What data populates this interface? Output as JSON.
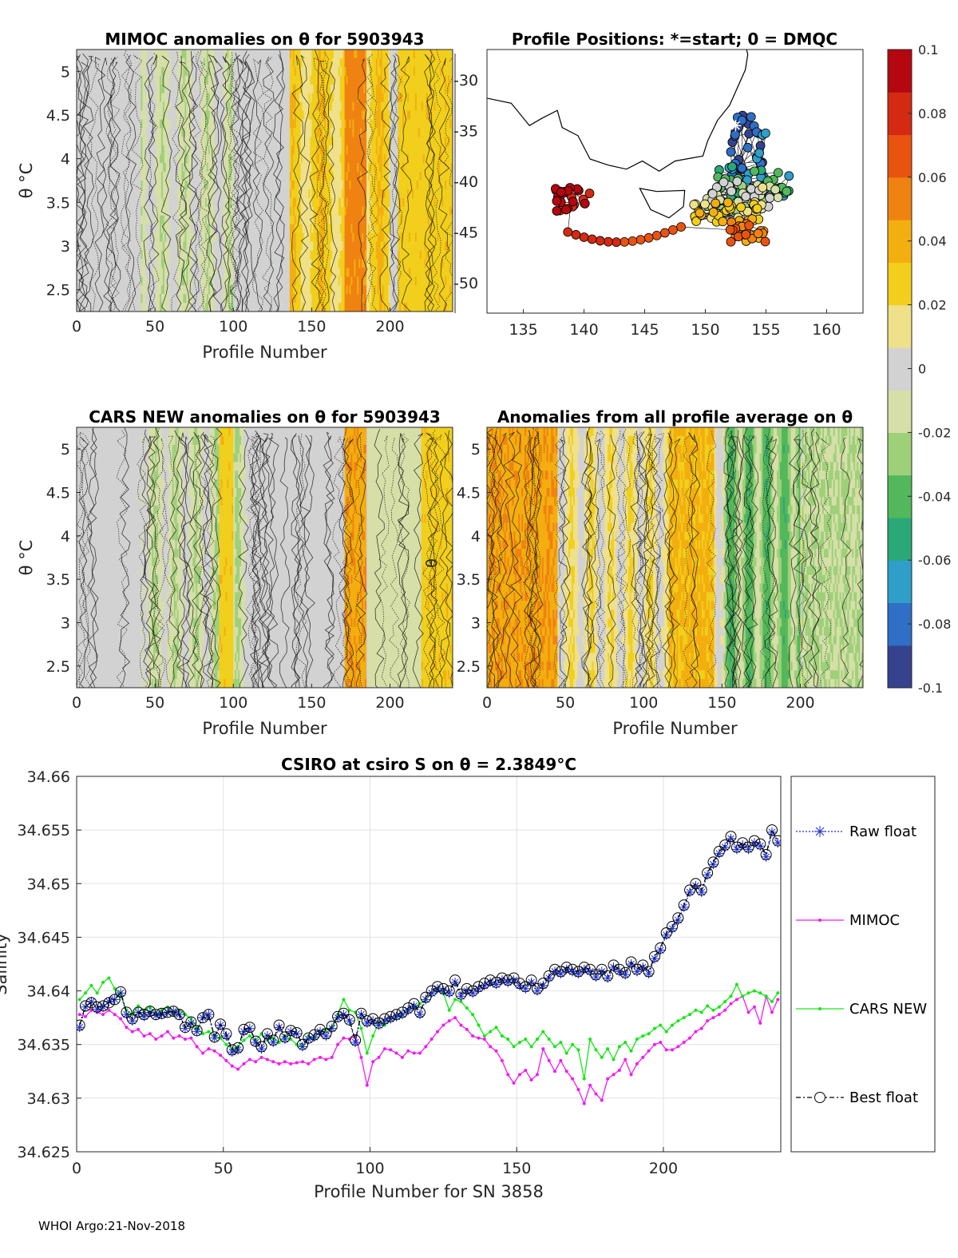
{
  "footer": "WHOI Argo:21-Nov-2018",
  "chart_data": [
    {
      "id": "mimoc",
      "type": "heatmap",
      "title": "MIMOC anomalies on θ  for 5903943",
      "xlabel": "Profile Number",
      "ylabel": "θ °C",
      "xlim": [
        0,
        240
      ],
      "ylim": [
        2.25,
        5.25
      ],
      "xticks": [
        "0",
        "50",
        "100",
        "150",
        "200"
      ],
      "yticks": [
        "2.5",
        "3",
        "3.5",
        "4",
        "4.5",
        "5"
      ]
    },
    {
      "id": "positions",
      "type": "scatter",
      "title": "Profile Positions: *=start; 0 = DMQC",
      "xlim": [
        132,
        163
      ],
      "ylim": [
        -53,
        -27
      ],
      "xticks": [
        "135",
        "140",
        "145",
        "150",
        "155",
        "160"
      ],
      "yticks": [
        "-30",
        "-35",
        "-40",
        "-45",
        "-50"
      ],
      "color_by": "profile number",
      "start_marker": [
        152.5,
        -34.5
      ]
    },
    {
      "id": "cars",
      "type": "heatmap",
      "title": "CARS NEW anomalies on θ for 5903943",
      "xlabel": "Profile Number",
      "ylabel": "θ °C",
      "xlim": [
        0,
        240
      ],
      "ylim": [
        2.25,
        5.25
      ],
      "xticks": [
        "0",
        "50",
        "100",
        "150",
        "200"
      ],
      "yticks": [
        "2.5",
        "3",
        "3.5",
        "4",
        "4.5",
        "5"
      ],
      "side_label": "θ"
    },
    {
      "id": "allavg",
      "type": "heatmap",
      "title": "Anomalies from all profile average on θ",
      "xlabel": "Profile Number",
      "xlim": [
        0,
        240
      ],
      "ylim": [
        2.25,
        5.25
      ],
      "xticks": [
        "0",
        "50",
        "100",
        "150",
        "200"
      ],
      "yticks": [
        "2.5",
        "3",
        "3.5",
        "4",
        "4.5",
        "5"
      ]
    },
    {
      "id": "colorbar",
      "type": "colorbar",
      "range": [
        -0.1,
        0.1
      ],
      "ticks": [
        "0.1",
        "0.08",
        "0.06",
        "0.04",
        "0.02",
        "0",
        "-0.02",
        "-0.04",
        "-0.06",
        "-0.08",
        "-0.1"
      ],
      "colors": [
        "#35438f",
        "#2f6fc6",
        "#2f9ec9",
        "#2aa878",
        "#53b85b",
        "#9ed07a",
        "#d6dfa8",
        "#d2d2d2",
        "#efe08a",
        "#f1cf1c",
        "#f3ae0f",
        "#ef8210",
        "#e8540f",
        "#d42a12",
        "#b5070f"
      ]
    },
    {
      "id": "salinity",
      "type": "line",
      "title": "CSIRO at csiro S on θ = 2.3849°C",
      "xlabel": "Profile Number for SN 3858",
      "ylabel": "Salinity",
      "xlim": [
        0,
        240
      ],
      "ylim": [
        34.625,
        34.66
      ],
      "xticks": [
        "0",
        "50",
        "100",
        "150",
        "200"
      ],
      "yticks": [
        "34.625",
        "34.63",
        "34.635",
        "34.64",
        "34.645",
        "34.65",
        "34.655",
        "34.66"
      ],
      "x": [
        1,
        3,
        5,
        7,
        9,
        11,
        13,
        15,
        17,
        19,
        21,
        23,
        25,
        27,
        29,
        31,
        33,
        35,
        37,
        39,
        41,
        43,
        45,
        47,
        49,
        51,
        53,
        55,
        57,
        59,
        61,
        63,
        65,
        67,
        69,
        71,
        73,
        75,
        77,
        79,
        81,
        83,
        85,
        87,
        89,
        91,
        93,
        95,
        97,
        99,
        101,
        103,
        105,
        107,
        109,
        111,
        113,
        115,
        117,
        119,
        121,
        123,
        125,
        127,
        129,
        131,
        133,
        135,
        137,
        139,
        141,
        143,
        145,
        147,
        149,
        151,
        153,
        155,
        157,
        159,
        161,
        163,
        165,
        167,
        169,
        171,
        173,
        175,
        177,
        179,
        181,
        183,
        185,
        187,
        189,
        191,
        193,
        195,
        197,
        199,
        201,
        203,
        205,
        207,
        209,
        211,
        213,
        215,
        217,
        219,
        221,
        223,
        225,
        227,
        229,
        231,
        233,
        235,
        237,
        239
      ],
      "series": [
        {
          "name": "Raw float",
          "color": "#1a2fd6",
          "values": [
            34.6366,
            34.6385,
            34.639,
            34.6383,
            34.6385,
            34.639,
            34.6392,
            34.6398,
            34.6378,
            34.6372,
            34.638,
            34.6376,
            34.638,
            34.6377,
            34.6378,
            34.638,
            34.6381,
            34.6378,
            34.6365,
            34.637,
            34.6362,
            34.6375,
            34.6378,
            34.6356,
            34.6368,
            34.6358,
            34.6343,
            34.6345,
            34.6362,
            34.6365,
            34.6352,
            34.6346,
            34.6358,
            34.6352,
            34.6366,
            34.6355,
            34.6362,
            34.636,
            34.6348,
            34.6355,
            34.6357,
            34.6362,
            34.6358,
            34.6365,
            34.6375,
            34.6378,
            34.6372,
            34.6352,
            34.6378,
            34.637,
            34.6372,
            34.6368,
            34.6372,
            34.6374,
            34.6376,
            34.6378,
            34.6382,
            34.6386,
            34.6378,
            34.6392,
            34.6398,
            34.6402,
            34.64,
            34.6398,
            34.6408,
            34.6395,
            34.64,
            34.6398,
            34.6402,
            34.6405,
            34.6408,
            34.6406,
            34.641,
            34.6408,
            34.641,
            34.6405,
            34.6402,
            34.6408,
            34.64,
            34.6405,
            34.6412,
            34.6418,
            34.6416,
            34.642,
            34.6418,
            34.6416,
            34.642,
            34.6418,
            34.6413,
            34.6418,
            34.6412,
            34.6422,
            34.6418,
            34.6415,
            34.6425,
            34.6418,
            34.6422,
            34.6416,
            34.643,
            34.6438,
            34.6452,
            34.6458,
            34.6466,
            34.6478,
            34.6492,
            34.6498,
            34.6492,
            34.6508,
            34.6518,
            34.6528,
            34.6534,
            34.6542,
            34.6532,
            34.6536,
            34.6532,
            34.6538,
            34.6535,
            34.6525,
            34.6548,
            34.6538
          ]
        },
        {
          "name": "MIMOC",
          "color": "#f01cf0",
          "values": [
            34.6378,
            34.6376,
            34.6382,
            34.638,
            34.6378,
            34.6382,
            34.6378,
            34.6374,
            34.6366,
            34.6362,
            34.6364,
            34.6358,
            34.636,
            34.6355,
            34.6358,
            34.6362,
            34.6356,
            34.6358,
            34.6355,
            34.6356,
            34.6348,
            34.6342,
            34.6346,
            34.6344,
            34.634,
            34.6335,
            34.633,
            34.6327,
            34.6332,
            34.6336,
            34.6334,
            34.6338,
            34.6336,
            34.6334,
            34.6332,
            34.6334,
            34.6332,
            34.6333,
            34.6334,
            34.6332,
            34.6336,
            34.6338,
            34.6336,
            34.6338,
            34.635,
            34.6356,
            34.6355,
            34.6358,
            34.6338,
            34.6312,
            34.6334,
            34.6338,
            34.6346,
            34.6345,
            34.6342,
            34.6338,
            34.6344,
            34.6342,
            34.6342,
            34.6348,
            34.6355,
            34.6362,
            34.6368,
            34.6372,
            34.6375,
            34.6368,
            34.6364,
            34.6358,
            34.6356,
            34.6355,
            34.6348,
            34.6344,
            34.6335,
            34.6322,
            34.6314,
            34.6322,
            34.6326,
            34.6317,
            34.6322,
            34.6346,
            34.6335,
            34.6325,
            34.6335,
            34.6325,
            34.6318,
            34.6308,
            34.6295,
            34.6312,
            34.6304,
            34.6298,
            34.6318,
            34.6322,
            34.6326,
            34.6336,
            34.6322,
            34.6332,
            34.6338,
            34.6344,
            34.635,
            34.6352,
            34.6345,
            34.6345,
            34.6348,
            34.6352,
            34.6356,
            34.6362,
            34.6365,
            34.6372,
            34.6375,
            34.6378,
            34.6382,
            34.6388,
            34.6392,
            34.6395,
            34.638,
            34.6385,
            34.637,
            34.6395,
            34.638,
            34.6392
          ]
        },
        {
          "name": "CARS NEW",
          "color": "#16e616",
          "values": [
            34.6392,
            34.6398,
            34.6405,
            34.6398,
            34.6408,
            34.6412,
            34.6402,
            34.6396,
            34.6382,
            34.6378,
            34.6386,
            34.6382,
            34.6385,
            34.6378,
            34.6382,
            34.6385,
            34.6378,
            34.6382,
            34.6378,
            34.6374,
            34.6366,
            34.636,
            34.6362,
            34.6358,
            34.6356,
            34.635,
            34.6346,
            34.6348,
            34.6354,
            34.6358,
            34.6354,
            34.636,
            34.6354,
            34.6356,
            34.6352,
            34.6358,
            34.6355,
            34.635,
            34.6348,
            34.6358,
            34.6356,
            34.6362,
            34.6364,
            34.6366,
            34.6378,
            34.6392,
            34.6382,
            34.638,
            34.6365,
            34.6342,
            34.6358,
            34.637,
            34.6368,
            34.6374,
            34.6376,
            34.6378,
            34.6382,
            34.6385,
            34.6388,
            34.6392,
            34.6398,
            34.6402,
            34.6398,
            34.6382,
            34.6392,
            34.639,
            34.6384,
            34.6378,
            34.6368,
            34.6358,
            34.6362,
            34.6366,
            34.6358,
            34.6355,
            34.6348,
            34.6352,
            34.6355,
            34.6348,
            34.6355,
            34.6362,
            34.6355,
            34.6348,
            34.6352,
            34.6342,
            34.635,
            34.6345,
            34.6318,
            34.6355,
            34.6345,
            34.6338,
            34.6346,
            34.6336,
            34.6348,
            34.6352,
            34.6344,
            34.6355,
            34.6358,
            34.636,
            34.6365,
            34.6368,
            34.6362,
            34.6368,
            34.6372,
            34.6375,
            34.6378,
            34.6382,
            34.638,
            34.6386,
            34.6382,
            34.6385,
            34.639,
            34.6395,
            34.6406,
            34.6395,
            34.6398,
            34.64,
            34.6398,
            34.6395,
            34.639,
            34.6398
          ]
        },
        {
          "name": "Best float",
          "color": "#000000",
          "values": [
            34.6368,
            34.6386,
            34.6389,
            34.6385,
            34.6386,
            34.6389,
            34.6392,
            34.6399,
            34.638,
            34.6374,
            34.638,
            34.6378,
            34.6381,
            34.6378,
            34.6379,
            34.638,
            34.6381,
            34.6378,
            34.6366,
            34.6371,
            34.6363,
            34.6375,
            34.6378,
            34.6357,
            34.6369,
            34.636,
            34.6345,
            34.6347,
            34.6364,
            34.6366,
            34.6353,
            34.6348,
            34.636,
            34.6354,
            34.6368,
            34.6357,
            34.6363,
            34.6361,
            34.635,
            34.6356,
            34.6359,
            34.6364,
            34.636,
            34.6367,
            34.6376,
            34.6379,
            34.6373,
            34.6354,
            34.6379,
            34.6372,
            34.6374,
            34.637,
            34.6374,
            34.6376,
            34.6378,
            34.638,
            34.6384,
            34.6388,
            34.638,
            34.6394,
            34.64,
            34.6404,
            34.6402,
            34.64,
            34.641,
            34.6397,
            34.6402,
            34.64,
            34.6404,
            34.6407,
            34.641,
            34.6408,
            34.6412,
            34.641,
            34.6412,
            34.6407,
            34.6404,
            34.641,
            34.6402,
            34.6407,
            34.6414,
            34.642,
            34.6418,
            34.6422,
            34.642,
            34.6418,
            34.6422,
            34.642,
            34.6415,
            34.642,
            34.6414,
            34.6424,
            34.642,
            34.6417,
            34.6427,
            34.642,
            34.6424,
            34.6418,
            34.6432,
            34.644,
            34.6454,
            34.646,
            34.6468,
            34.648,
            34.6494,
            34.65,
            34.6494,
            34.651,
            34.652,
            34.653,
            34.6536,
            34.6544,
            34.6534,
            34.6538,
            34.6534,
            34.654,
            34.6537,
            34.6527,
            34.655,
            34.654
          ]
        }
      ]
    }
  ]
}
